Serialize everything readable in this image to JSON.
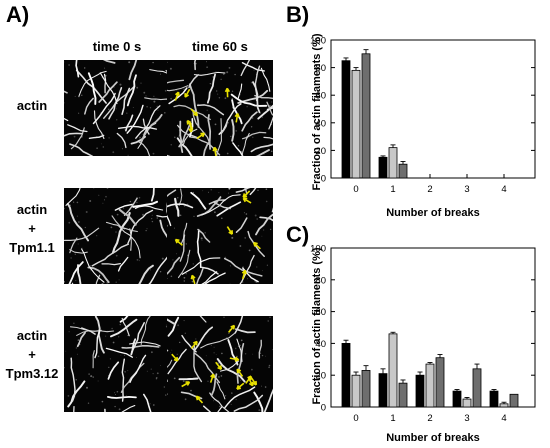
{
  "figure": {
    "panel_a_letter": "A)",
    "panel_b_letter": "B)",
    "panel_c_letter": "C)",
    "col_headers": [
      "time 0 s",
      "time 60 s"
    ],
    "row_labels": [
      [
        "actin"
      ],
      [
        "actin",
        "+",
        "Tpm1.1"
      ],
      [
        "actin",
        "+",
        "Tpm3.12"
      ]
    ],
    "arrow_color": "#e8e000",
    "bar_colors": [
      "#000000",
      "#c8c8c8",
      "#6e6e6e"
    ]
  },
  "chart_data": [
    {
      "type": "bar",
      "panel": "B",
      "categories": [
        "0",
        "1",
        "2",
        "3",
        "4"
      ],
      "series": [
        {
          "values": [
            85,
            15,
            0,
            0,
            0
          ],
          "errors": [
            2,
            1,
            0,
            0,
            0
          ]
        },
        {
          "values": [
            78,
            22,
            0,
            0,
            0
          ],
          "errors": [
            2,
            2,
            0,
            0,
            0
          ]
        },
        {
          "values": [
            90,
            10,
            0,
            0,
            0
          ],
          "errors": [
            3,
            2,
            0,
            0,
            0
          ]
        }
      ],
      "yticks": [
        0,
        20,
        40,
        60,
        80,
        100
      ],
      "ylim": [
        0,
        100
      ],
      "xlabel": "Number of breaks",
      "ylabel": "Fraction of actin filaments (%)"
    },
    {
      "type": "bar",
      "panel": "C",
      "categories": [
        "0",
        "1",
        "2",
        "3",
        "4"
      ],
      "series": [
        {
          "values": [
            40,
            21,
            20,
            10,
            10
          ],
          "errors": [
            2,
            3,
            2,
            1,
            1
          ]
        },
        {
          "values": [
            20,
            46,
            27,
            5,
            2
          ],
          "errors": [
            2,
            1,
            1,
            1,
            1
          ]
        },
        {
          "values": [
            23,
            15,
            31,
            24,
            8
          ],
          "errors": [
            3,
            2,
            2,
            3,
            0
          ]
        }
      ],
      "yticks": [
        0,
        20,
        40,
        60,
        80,
        100
      ],
      "ylim": [
        0,
        100
      ],
      "xlabel": "Number of breaks",
      "ylabel": "Fraction of actin filaments (%)"
    }
  ]
}
